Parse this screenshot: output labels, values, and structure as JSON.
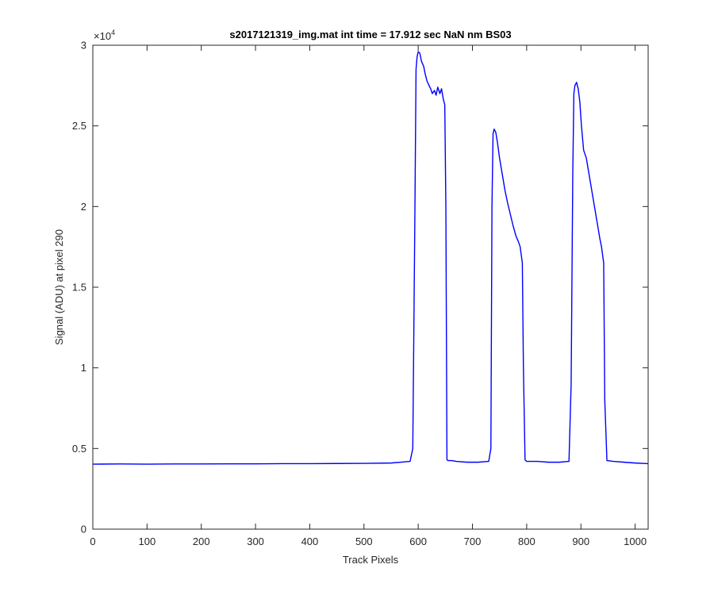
{
  "chart_data": {
    "type": "line",
    "title": "s2017121319_img.mat int time = 17.912 sec  NaN nm BS03",
    "xlabel": "Track Pixels",
    "ylabel": "Signal (ADU) at pixel 290",
    "xlim": [
      0,
      1024
    ],
    "ylim": [
      0,
      30000
    ],
    "x_ticks": [
      0,
      100,
      200,
      300,
      400,
      500,
      600,
      700,
      800,
      900,
      1000
    ],
    "y_ticks": [
      0,
      5000,
      10000,
      15000,
      20000,
      25000,
      30000
    ],
    "y_tick_labels": [
      "0",
      "0.5",
      "1",
      "1.5",
      "2",
      "2.5",
      "3"
    ],
    "y_exponent_prefix": "×10",
    "y_exponent_power": "4",
    "grid": false,
    "colors": {
      "line": "#0000ff",
      "axes": "#262626",
      "background": "#ffffff"
    },
    "series": [
      {
        "x": [
          0,
          50,
          100,
          150,
          200,
          250,
          300,
          350,
          400,
          450,
          500,
          550,
          585,
          590,
          594,
          596,
          598,
          600,
          603,
          606,
          610,
          613,
          616,
          620,
          623,
          626,
          630,
          633,
          636,
          640,
          643,
          646,
          649,
          651,
          653,
          655,
          658,
          662,
          670,
          690,
          710,
          730,
          734,
          736,
          738,
          740,
          743,
          746,
          750,
          755,
          760,
          765,
          770,
          775,
          780,
          785,
          788,
          790,
          792,
          794,
          797,
          800,
          820,
          840,
          860,
          878,
          882,
          885,
          887,
          889,
          892,
          895,
          898,
          901,
          905,
          910,
          915,
          920,
          925,
          930,
          935,
          938,
          940,
          942,
          944,
          948,
          960,
          980,
          1000,
          1024
        ],
        "y": [
          4030,
          4040,
          4030,
          4040,
          4040,
          4050,
          4050,
          4060,
          4060,
          4070,
          4080,
          4100,
          4200,
          5000,
          20000,
          28500,
          29300,
          29600,
          29500,
          29000,
          28700,
          28200,
          27800,
          27500,
          27300,
          27000,
          27200,
          26900,
          27400,
          27000,
          27300,
          26700,
          26300,
          20000,
          4300,
          4250,
          4250,
          4250,
          4200,
          4150,
          4150,
          4200,
          5000,
          20000,
          24500,
          24800,
          24600,
          24000,
          23000,
          22000,
          21000,
          20200,
          19500,
          18800,
          18200,
          17800,
          17500,
          17000,
          16500,
          10000,
          4300,
          4200,
          4200,
          4150,
          4150,
          4200,
          9000,
          22000,
          27000,
          27500,
          27700,
          27300,
          26500,
          25000,
          23500,
          23000,
          22000,
          21000,
          20000,
          19000,
          18000,
          17500,
          17000,
          16500,
          8000,
          4250,
          4200,
          4150,
          4100,
          4060
        ]
      }
    ]
  }
}
